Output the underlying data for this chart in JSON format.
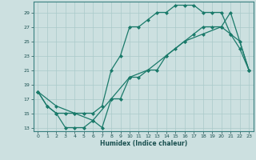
{
  "xlabel": "Humidex (Indice chaleur)",
  "bg_color": "#cce0e0",
  "grid_color": "#aacaca",
  "line_color": "#1a7a6a",
  "xlim": [
    -0.5,
    23.5
  ],
  "ylim": [
    12.5,
    30.5
  ],
  "xticks": [
    0,
    1,
    2,
    3,
    4,
    5,
    6,
    7,
    8,
    9,
    10,
    11,
    12,
    13,
    14,
    15,
    16,
    17,
    18,
    19,
    20,
    21,
    22,
    23
  ],
  "yticks": [
    13,
    15,
    17,
    19,
    21,
    23,
    25,
    27,
    29
  ],
  "line1_x": [
    0,
    1,
    2,
    3,
    4,
    5,
    6,
    7,
    8,
    9,
    10,
    11,
    12,
    13,
    14,
    15,
    16,
    17,
    18,
    19,
    20,
    21,
    22,
    23
  ],
  "line1_y": [
    18,
    16,
    15,
    13,
    13,
    13,
    14,
    13,
    17,
    17,
    20,
    20,
    21,
    21,
    23,
    24,
    25,
    26,
    27,
    27,
    27,
    26,
    24,
    21
  ],
  "line2_x": [
    0,
    1,
    2,
    3,
    4,
    5,
    6,
    7,
    8,
    9,
    10,
    11,
    12,
    13,
    14,
    15,
    16,
    17,
    18,
    19,
    20,
    21,
    22,
    23
  ],
  "line2_y": [
    18,
    16,
    15,
    15,
    15,
    15,
    15,
    16,
    21,
    23,
    27,
    27,
    28,
    29,
    29,
    30,
    30,
    30,
    29,
    29,
    29,
    26,
    25,
    21
  ],
  "line3_x": [
    0,
    2,
    4,
    6,
    8,
    10,
    12,
    14,
    16,
    18,
    20,
    21,
    23
  ],
  "line3_y": [
    18,
    16,
    15,
    14,
    17,
    20,
    21,
    23,
    25,
    26,
    27,
    29,
    21
  ]
}
